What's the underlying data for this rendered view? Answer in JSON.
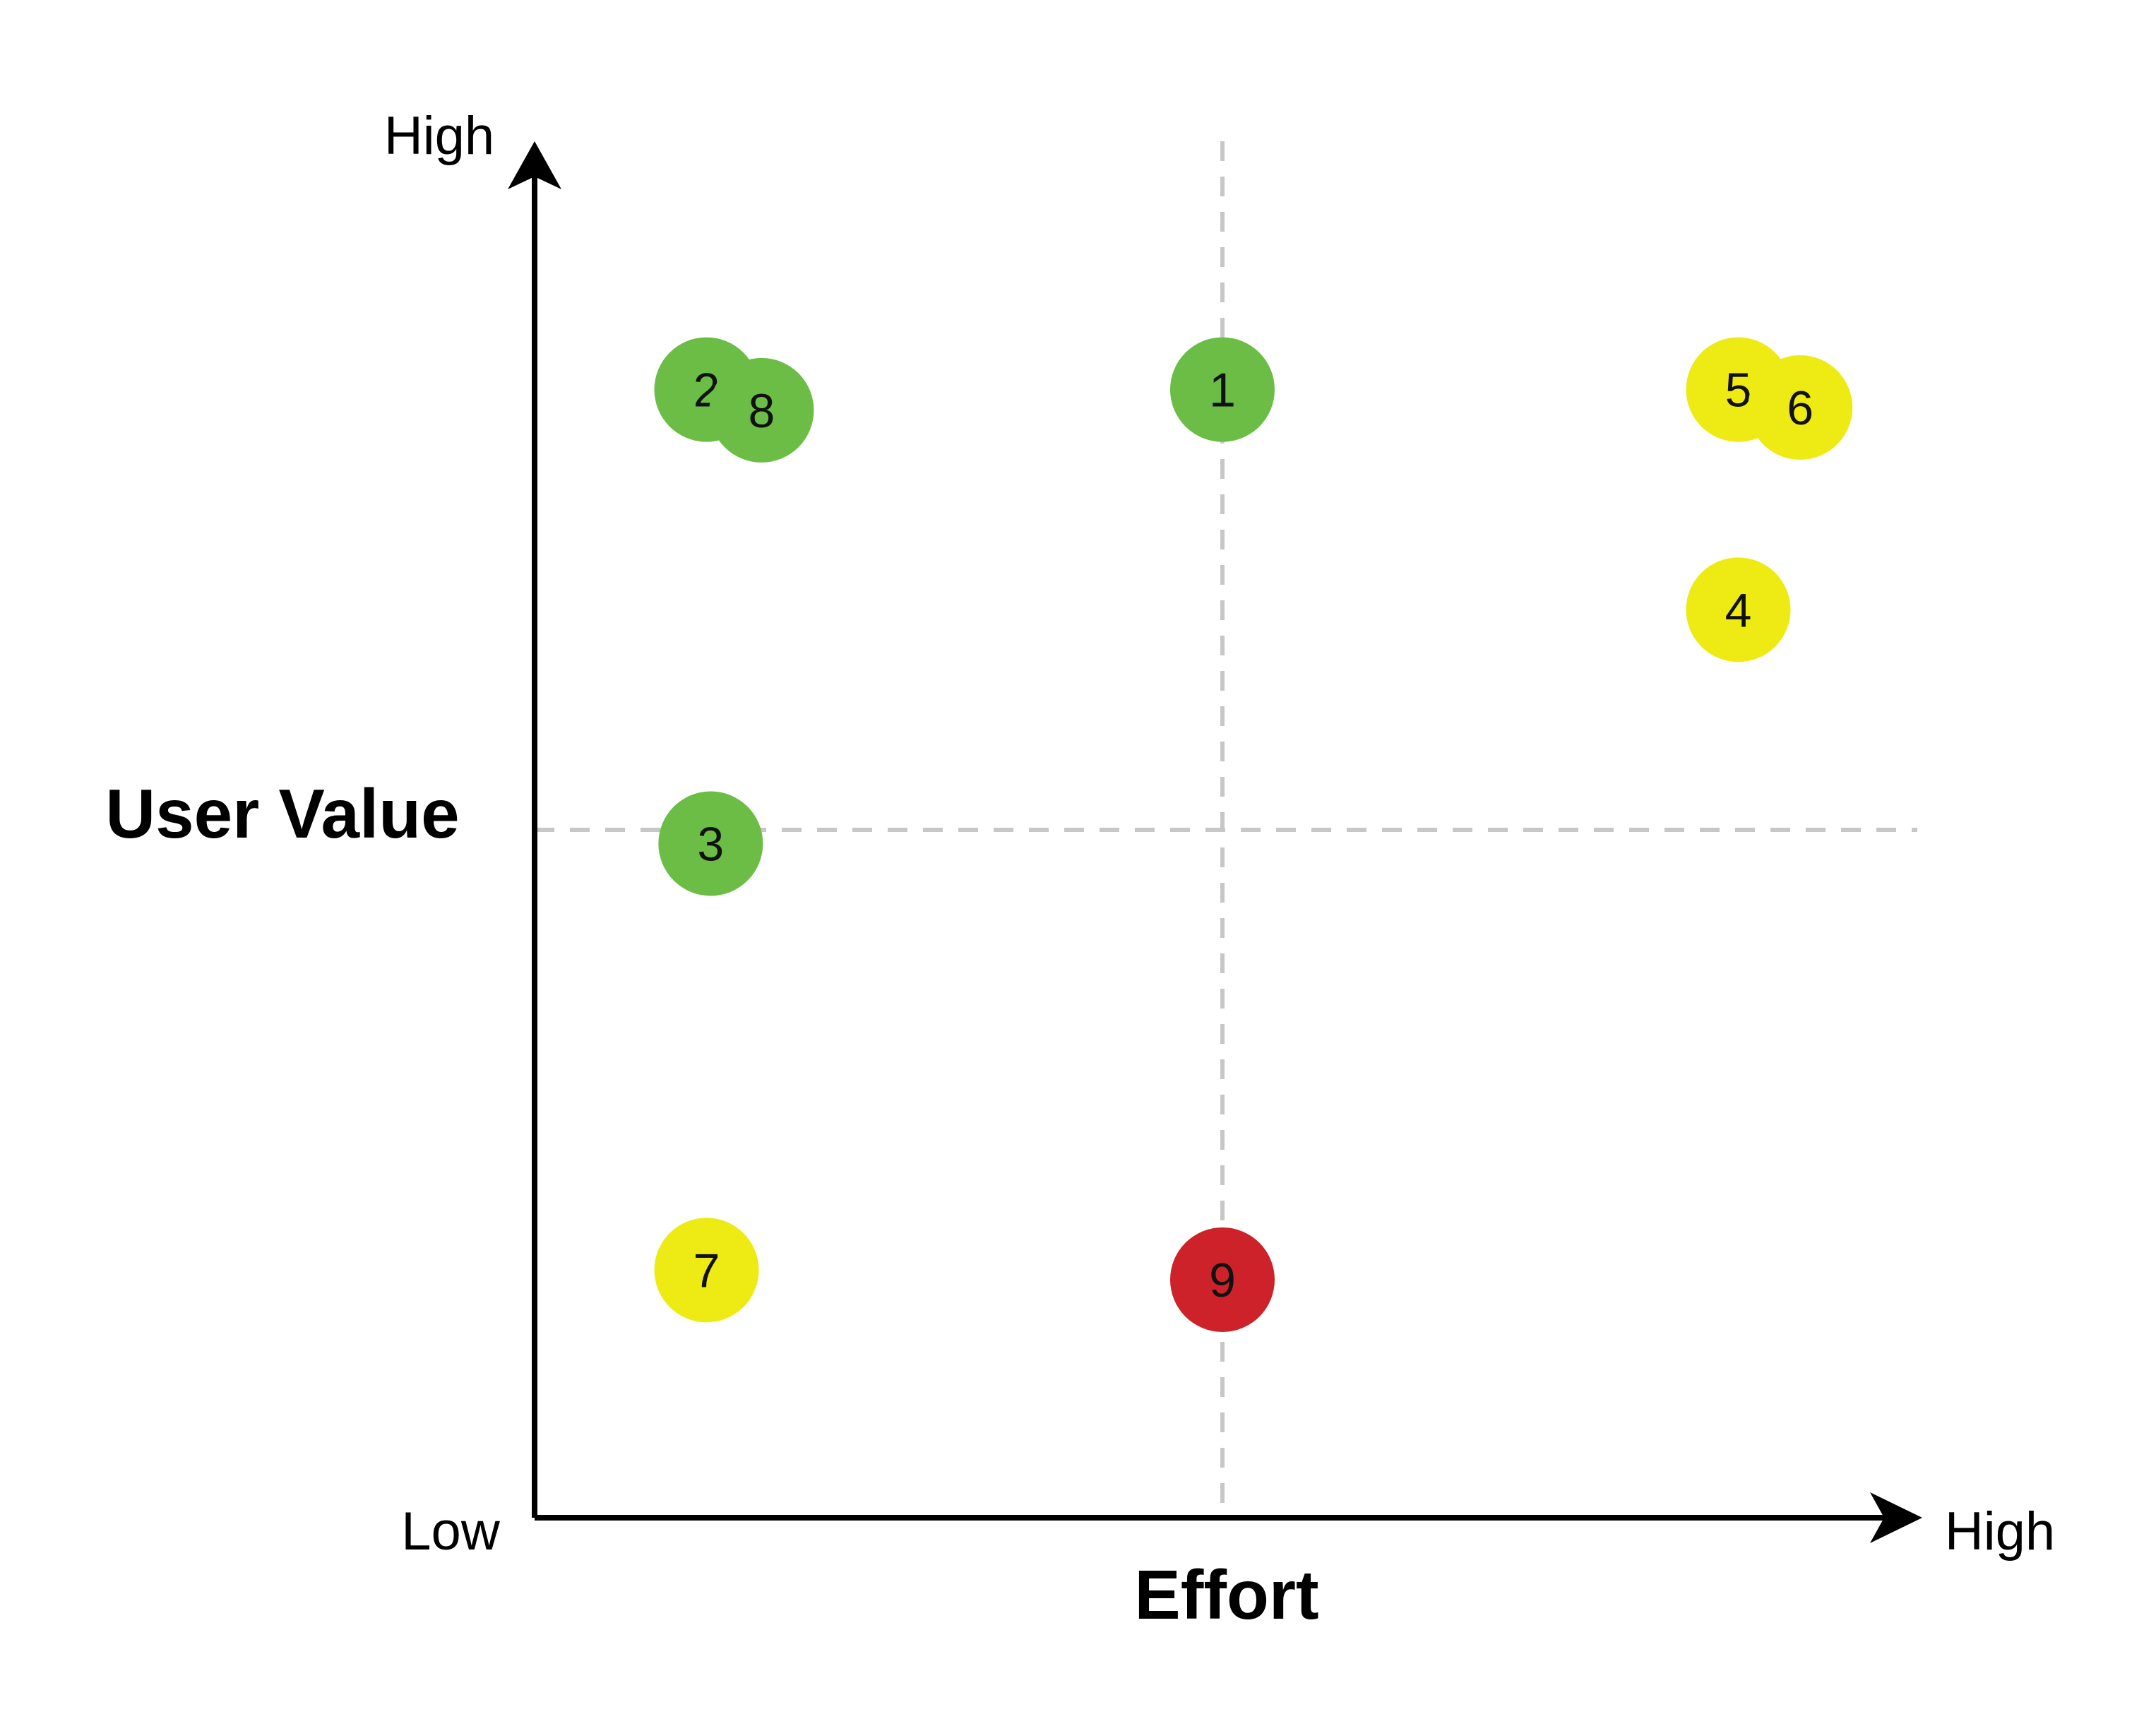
{
  "chart_data": {
    "type": "scatter",
    "xlabel": "Effort",
    "ylabel": "User Value",
    "x_low_label": "Low",
    "x_high_label": "High",
    "y_high_label": "High",
    "xlim": [
      0,
      10
    ],
    "ylim": [
      0,
      10
    ],
    "grid": false,
    "quadrant_divider": {
      "x": 5,
      "y": 5,
      "style": "dashed",
      "color": "#c7c7c7"
    },
    "points": [
      {
        "label": "1",
        "x": 5.0,
        "y": 8.2,
        "color": "#6bbd45"
      },
      {
        "label": "2",
        "x": 1.25,
        "y": 8.2,
        "color": "#6bbd45"
      },
      {
        "label": "8",
        "x": 1.65,
        "y": 8.05,
        "color": "#6bbd45"
      },
      {
        "label": "3",
        "x": 1.28,
        "y": 4.9,
        "color": "#6bbd45"
      },
      {
        "label": "5",
        "x": 8.75,
        "y": 8.2,
        "color": "#eeea14"
      },
      {
        "label": "6",
        "x": 9.2,
        "y": 8.07,
        "color": "#eeea14"
      },
      {
        "label": "4",
        "x": 8.75,
        "y": 6.6,
        "color": "#eeea14"
      },
      {
        "label": "7",
        "x": 1.25,
        "y": 1.8,
        "color": "#eeea14"
      },
      {
        "label": "9",
        "x": 5.0,
        "y": 1.73,
        "color": "#cd2229"
      }
    ]
  }
}
